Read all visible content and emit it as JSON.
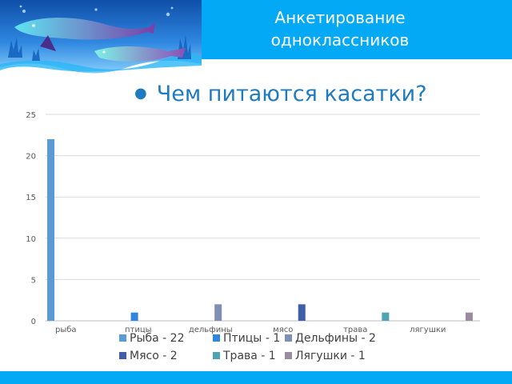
{
  "slide": {
    "title_line1": "Анкетирование",
    "title_line2": "одноклассников",
    "bullet_text": "Чем питаются касатки?"
  },
  "chart_data": {
    "type": "bar",
    "categories": [
      "рыба",
      "птицы",
      "дельфины",
      "мясо",
      "трава",
      "лягушки"
    ],
    "series": [
      {
        "name": "Рыба - 22",
        "values": [
          22,
          0,
          0,
          0,
          0,
          0
        ],
        "color": "#5b9bd5"
      },
      {
        "name": "Птицы - 1",
        "values": [
          0,
          1,
          0,
          0,
          0,
          0
        ],
        "color": "#2e86de"
      },
      {
        "name": "Дельфины - 2",
        "values": [
          0,
          0,
          2,
          0,
          0,
          0
        ],
        "color": "#7f8fb3"
      },
      {
        "name": "Мясо - 2",
        "values": [
          0,
          0,
          0,
          2,
          0,
          0
        ],
        "color": "#3f5ea8"
      },
      {
        "name": "Трава - 1",
        "values": [
          0,
          0,
          0,
          0,
          1,
          0
        ],
        "color": "#4fa3b3"
      },
      {
        "name": "Лягушки - 1",
        "values": [
          0,
          0,
          0,
          0,
          0,
          1
        ],
        "color": "#9b8aa0"
      }
    ],
    "y_ticks": [
      "0",
      "5",
      "10",
      "15",
      "20",
      "25"
    ],
    "ylim": [
      0,
      25
    ],
    "grid": true,
    "legend_position": "bottom"
  },
  "colors": {
    "band": "#03a9f4",
    "title_text": "#ffffff",
    "bullet_text": "#1f7bbf"
  },
  "icons": {
    "banner": "whales-illustration"
  }
}
